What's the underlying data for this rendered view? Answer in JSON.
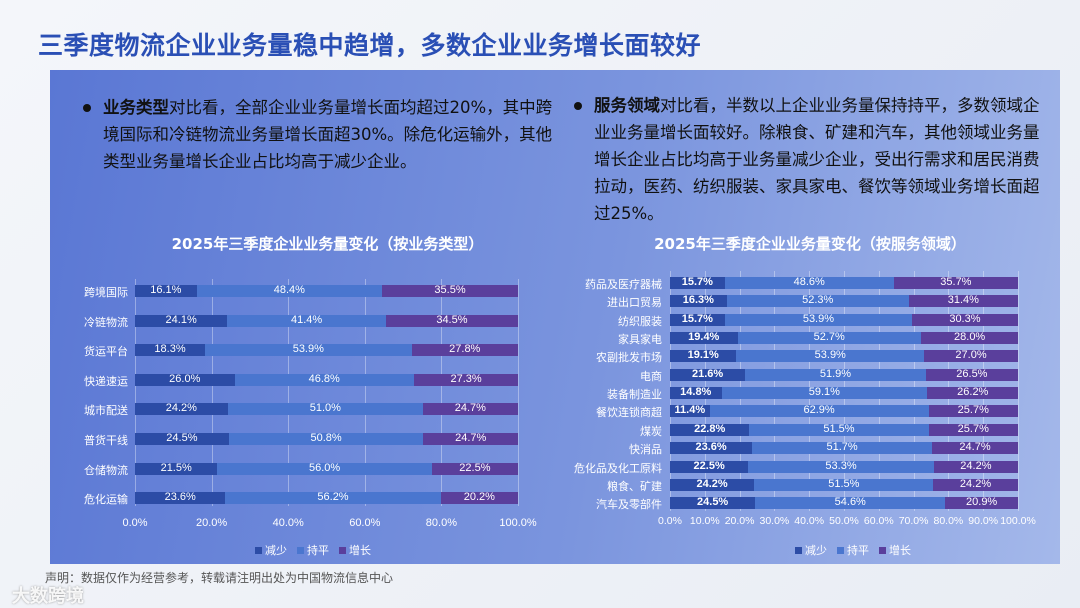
{
  "title": "三季度物流企业业务量稳中趋增，多数企业业务增长面较好",
  "left_bullet": {
    "bold": "业务类型",
    "text": "对比看，全部企业业务量增长面均超过20%，其中跨境国际和冷链物流业务量增长面超30%。除危化运输外，其他类型业务量增长企业占比均高于减少企业。"
  },
  "right_bullet": {
    "bold": "服务领域",
    "text": "对比看，半数以上企业业务量保持持平，多数领域企业业务量增长面较好。除粮食、矿建和汽车，其他领域业务量增长企业占比均高于业务量减少企业，受出行需求和居民消费拉动，医药、纺织服装、家具家电、餐饮等领域业务增长面超过25%。"
  },
  "footer": "声明：数据仅作为经营参考，转载请注明出处为中国物流信息中心",
  "watermark": "大数跨境",
  "colors": {
    "减少": "#2c4ca6",
    "持平": "#4a76cf",
    "增长": "#5a3f9c"
  },
  "chart_data": [
    {
      "type": "bar",
      "stacked": "horizontal-100%",
      "title": "2025年三季度企业业务量变化（按业务类型）",
      "categories": [
        "跨境国际",
        "冷链物流",
        "货运平台",
        "快递速运",
        "城市配送",
        "普货干线",
        "仓储物流",
        "危化运输"
      ],
      "series": [
        {
          "name": "减少",
          "values": [
            16.1,
            24.1,
            18.3,
            26.0,
            24.2,
            24.5,
            21.5,
            23.6
          ]
        },
        {
          "name": "持平",
          "values": [
            48.4,
            41.4,
            53.9,
            46.8,
            51.0,
            50.8,
            56.0,
            56.2
          ]
        },
        {
          "name": "增长",
          "values": [
            35.5,
            34.5,
            27.8,
            27.3,
            24.7,
            24.7,
            22.5,
            20.2
          ]
        }
      ],
      "xlim": [
        0,
        100
      ],
      "ticks": [
        "0.0%",
        "20.0%",
        "40.0%",
        "60.0%",
        "80.0%",
        "100.0%"
      ],
      "legend": "bottom"
    },
    {
      "type": "bar",
      "stacked": "horizontal-100%",
      "title": "2025年三季度企业业务量变化（按服务领域）",
      "categories": [
        "药品及医疗器械",
        "进出口贸易",
        "纺织服装",
        "家具家电",
        "农副批发市场",
        "电商",
        "装备制造业",
        "餐饮连锁商超",
        "煤炭",
        "快消品",
        "危化品及化工原料",
        "粮食、矿建",
        "汽车及零部件"
      ],
      "series": [
        {
          "name": "减少",
          "values": [
            15.7,
            16.3,
            15.7,
            19.4,
            19.1,
            21.6,
            14.8,
            11.4,
            22.8,
            23.6,
            22.5,
            24.2,
            24.5
          ]
        },
        {
          "name": "持平",
          "values": [
            48.6,
            52.3,
            53.9,
            52.7,
            53.9,
            51.9,
            59.1,
            62.9,
            51.5,
            51.7,
            53.3,
            51.5,
            54.6
          ]
        },
        {
          "name": "增长",
          "values": [
            35.7,
            31.4,
            30.3,
            28.0,
            27.0,
            26.5,
            26.2,
            25.7,
            25.7,
            24.7,
            24.2,
            24.2,
            20.9
          ]
        }
      ],
      "xlim": [
        0,
        100
      ],
      "ticks": [
        "0.0%",
        "10.0%",
        "20.0%",
        "30.0%",
        "40.0%",
        "50.0%",
        "60.0%",
        "70.0%",
        "80.0%",
        "90.0%",
        "100.0%"
      ],
      "legend": "bottom"
    }
  ]
}
